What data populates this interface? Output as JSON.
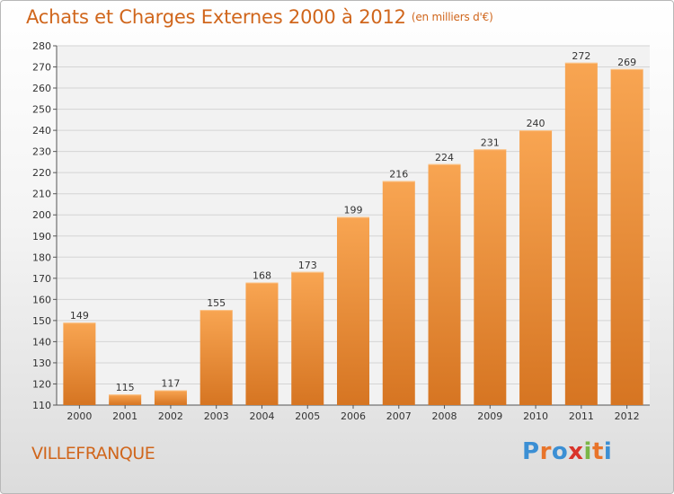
{
  "title": "Achats et Charges Externes 2000 à 2012",
  "subtitle": "(en milliers d'€)",
  "city": "VILLEFRANQUE",
  "logo": {
    "letters": [
      "P",
      "r",
      "o",
      "x",
      "i",
      "t",
      "i"
    ],
    "colors": [
      "#3b8fd4",
      "#e8742a",
      "#3b8fd4",
      "#d9342b",
      "#7ab648",
      "#e8742a",
      "#3b8fd4"
    ]
  },
  "colors": {
    "accent": "#d0661c",
    "bar_top": "#f8a552",
    "bar_bottom": "#d67522"
  },
  "chart_data": {
    "type": "bar",
    "categories": [
      "2000",
      "2001",
      "2002",
      "2003",
      "2004",
      "2005",
      "2006",
      "2007",
      "2008",
      "2009",
      "2010",
      "2011",
      "2012"
    ],
    "values": [
      149,
      115,
      117,
      155,
      168,
      173,
      199,
      216,
      224,
      231,
      240,
      272,
      269
    ],
    "ylim": [
      110,
      280
    ],
    "yticks": [
      110,
      120,
      130,
      140,
      150,
      160,
      170,
      180,
      190,
      200,
      210,
      220,
      230,
      240,
      250,
      260,
      270,
      280
    ],
    "grid": true
  }
}
